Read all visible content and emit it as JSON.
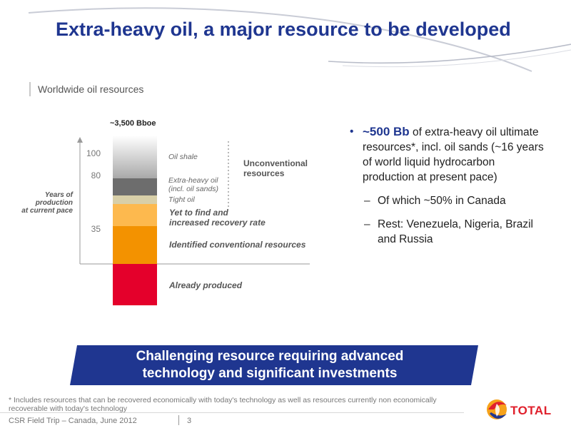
{
  "title": "Extra-heavy oil, a major resource to be developed",
  "section_title": "Worldwide oil resources",
  "chart": {
    "top_label": "~3,500 Bboe",
    "y_axis_label": [
      "Years of",
      "production",
      "at current pace"
    ],
    "ticks": [
      "100",
      "80",
      "35"
    ],
    "segments": [
      {
        "label": "Already produced",
        "color": "#e4002b"
      },
      {
        "label": "Identified conventional resources",
        "color": "#f39200"
      },
      {
        "label": "Yet to find and increased recovery rate",
        "color": "#fdb94e"
      },
      {
        "label": "Tight oil",
        "color": "#d8cfa8"
      },
      {
        "label": "Extra-heavy oil (incl. oil sands)",
        "color": "#6d6d6d"
      },
      {
        "label": "Oil shale",
        "color": "#c8c8c8"
      }
    ],
    "labels": {
      "already_produced": "Already produced",
      "identified": "Identified conventional resources",
      "yet_to_find_1": "Yet to find and",
      "yet_to_find_2": "increased recovery rate",
      "tight_oil": "Tight oil",
      "extra_heavy_1": "Extra-heavy oil",
      "extra_heavy_2": "(incl. oil sands)",
      "oil_shale": "Oil shale",
      "unconventional_1": "Unconventional",
      "unconventional_2": "resources"
    }
  },
  "bullets": {
    "main_highlight": "~500 Bb",
    "main_rest": " of extra-heavy oil ultimate resources*, incl. oil sands (~16 years of world liquid hydrocarbon production at present pace)",
    "sub": [
      "Of which ~50% in Canada",
      "Rest: Venezuela, Nigeria, Brazil and Russia"
    ]
  },
  "banner": {
    "line1": "Challenging resource requiring advanced",
    "line2": "technology and significant investments"
  },
  "footnote": "* Includes resources that can be recovered economically with today's technology as well as resources currently non economically recoverable with today's technology",
  "footer": {
    "event": "CSR Field Trip – Canada, June 2012",
    "page": "3"
  },
  "logo_text": "TOTAL",
  "colors": {
    "title_blue": "#1f3690",
    "banner_blue": "#1f3690",
    "logo_red": "#e0202c"
  }
}
